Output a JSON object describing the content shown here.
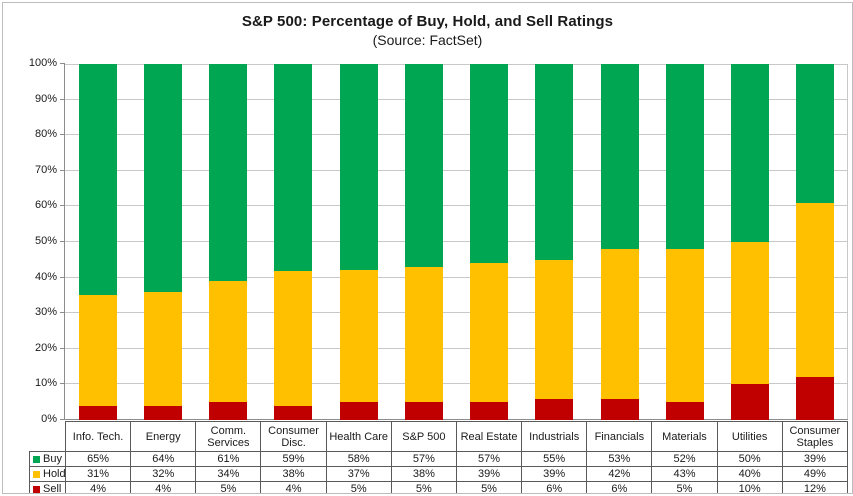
{
  "title": "S&P 500: Percentage of Buy, Hold, and Sell Ratings",
  "subtitle": "(Source: FactSet)",
  "colors": {
    "buy": "#00A651",
    "hold": "#FFC000",
    "sell": "#C00000",
    "gridline": "#c8c8c8",
    "axis": "#8c8c8c",
    "table_border": "#5a5a5a",
    "text": "#1a1a1a"
  },
  "chart_data": {
    "type": "bar",
    "stacked": true,
    "title": "S&P 500: Percentage of Buy, Hold, and Sell Ratings",
    "subtitle": "(Source: FactSet)",
    "grid": true,
    "legend_position": "table-left",
    "value_suffix": "%",
    "categories": [
      "Info. Tech.",
      "Energy",
      "Comm. Services",
      "Consumer Disc.",
      "Health Care",
      "S&P 500",
      "Real Estate",
      "Industrials",
      "Financials",
      "Materials",
      "Utilities",
      "Consumer Staples"
    ],
    "series": [
      {
        "name": "Buy",
        "color_key": "buy",
        "values": [
          65,
          64,
          61,
          59,
          58,
          57,
          57,
          55,
          53,
          52,
          50,
          39
        ]
      },
      {
        "name": "Hold",
        "color_key": "hold",
        "values": [
          31,
          32,
          34,
          38,
          37,
          38,
          39,
          39,
          42,
          43,
          40,
          49
        ]
      },
      {
        "name": "Sell",
        "color_key": "sell",
        "values": [
          4,
          4,
          5,
          4,
          5,
          5,
          5,
          6,
          6,
          5,
          10,
          12
        ]
      }
    ],
    "y_axis": {
      "min": 0,
      "max": 100,
      "step": 10,
      "tick_suffix": "%",
      "ticks": [
        "100%",
        "90%",
        "80%",
        "70%",
        "60%",
        "50%",
        "40%",
        "30%",
        "20%",
        "10%",
        "0%"
      ]
    }
  }
}
